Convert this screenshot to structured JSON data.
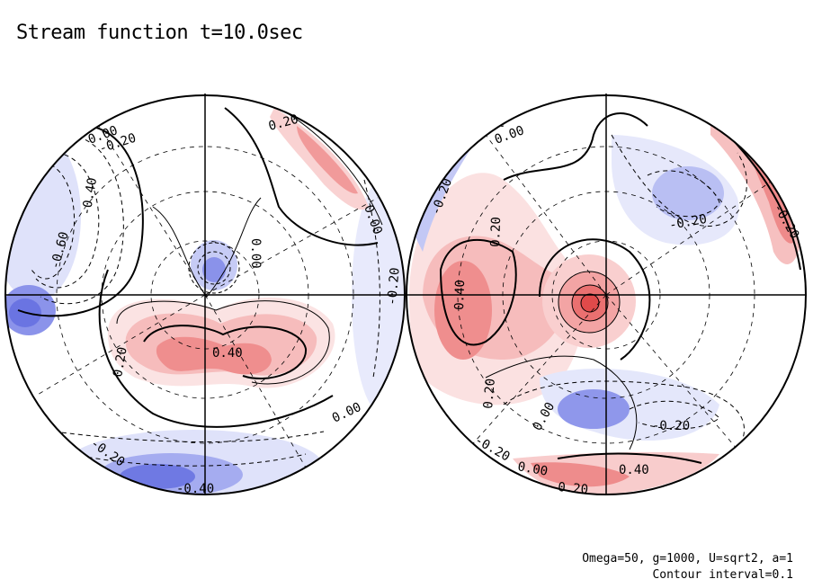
{
  "title": "Stream function t=10.0sec",
  "footer": {
    "line1": "Omega=50, g=1000, U=sqrt2, a=1",
    "line2": "Contour interval=0.1"
  },
  "colors": {
    "positive": "#e8605f",
    "negative": "#5b67e0",
    "contour": "#000000"
  },
  "chart_data": {
    "type": "heatmap",
    "title": "Stream function t=10.0sec",
    "contour_interval": 0.1,
    "projection": "two polar hemispheres (orthographic)",
    "panels": [
      {
        "name": "left hemisphere",
        "features": [
          {
            "kind": "low",
            "value": -0.6,
            "note": "western limb"
          },
          {
            "kind": "low",
            "value": -0.4,
            "note": "southern limb"
          },
          {
            "kind": "low",
            "value": -0.2,
            "note": "eastern limb"
          },
          {
            "kind": "low",
            "value": -0.3,
            "note": "near pole"
          },
          {
            "kind": "high",
            "value": 0.4,
            "note": "south of pole"
          },
          {
            "kind": "high",
            "value": 0.2,
            "note": "north-east band"
          }
        ],
        "contour_labels": [
          "0.00",
          "-0.20",
          "-0.40",
          "-0.60",
          "0.20",
          "0.00",
          "0.00",
          "0.20",
          "0.40",
          "0.00",
          "-0.20",
          "-0.20",
          "-0.40"
        ]
      },
      {
        "name": "right hemisphere",
        "features": [
          {
            "kind": "high",
            "value": 0.7,
            "note": "near pole"
          },
          {
            "kind": "high",
            "value": 0.4,
            "note": "western limb"
          },
          {
            "kind": "high",
            "value": 0.3,
            "note": "north-east limb"
          },
          {
            "kind": "high",
            "value": 0.4,
            "note": "southern limb"
          },
          {
            "kind": "low",
            "value": -0.2,
            "note": "north-east"
          },
          {
            "kind": "low",
            "value": -0.3,
            "note": "south-east"
          }
        ],
        "contour_labels": [
          "0.00",
          "-0.20",
          "0.20",
          "0.40",
          "0.20",
          "0.00",
          "-0.20",
          "-0.20",
          "-0.20",
          "0.00",
          "0.20",
          "0.40",
          "-0.20"
        ]
      }
    ]
  }
}
